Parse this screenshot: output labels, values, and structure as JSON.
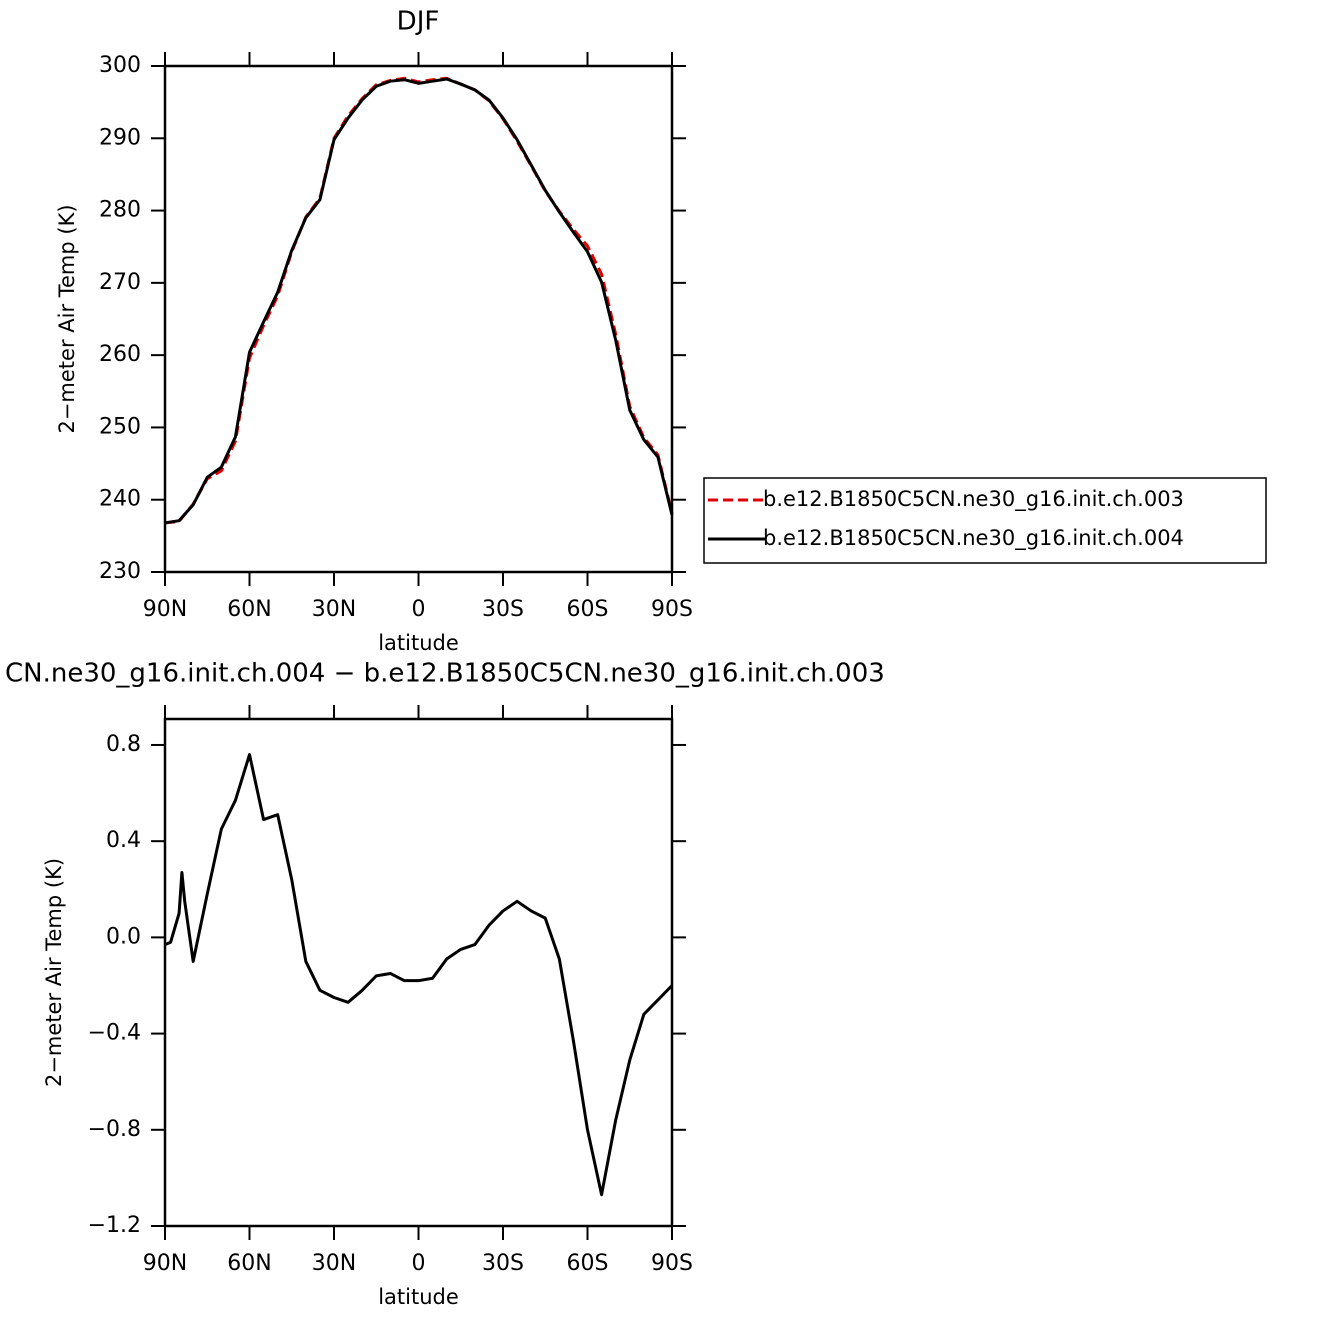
{
  "chart_data": [
    {
      "type": "line",
      "title": "DJF",
      "xlabel": "latitude",
      "ylabel": "2−meter Air Temp (K)",
      "x": [
        90,
        85,
        80,
        75,
        70,
        65,
        60,
        55,
        50,
        45,
        40,
        35,
        30,
        25,
        20,
        15,
        10,
        5,
        0,
        -5,
        -10,
        -15,
        -20,
        -25,
        -30,
        -35,
        -40,
        -45,
        -50,
        -55,
        -60,
        -65,
        -70,
        -75,
        -80,
        -85,
        -90
      ],
      "xlim": [
        90,
        -90
      ],
      "xticks": [
        {
          "value": 90,
          "label": "90N"
        },
        {
          "value": 60,
          "label": "60N"
        },
        {
          "value": 30,
          "label": "30N"
        },
        0,
        {
          "value": -30,
          "label": "30S"
        },
        {
          "value": -60,
          "label": "60S"
        },
        {
          "value": -90,
          "label": "90S"
        }
      ],
      "ylim": [
        230,
        300
      ],
      "yticks": [
        230,
        240,
        250,
        260,
        270,
        280,
        290,
        300
      ],
      "legend": "outside right",
      "series": [
        {
          "name": "b.e12.B1850C5CN.ne30_g16.init.ch.003",
          "color": "#e00000",
          "linestyle": "dashed",
          "values": [
            236.8,
            237.0,
            239.4,
            242.9,
            244.0,
            248.1,
            259.6,
            264.1,
            268.2,
            274.3,
            279.1,
            281.7,
            290.0,
            293.1,
            295.5,
            297.4,
            298.0,
            298.3,
            297.8,
            298.1,
            298.3,
            297.5,
            296.7,
            295.2,
            292.7,
            289.6,
            286.2,
            282.7,
            279.9,
            277.4,
            275.1,
            271.2,
            262.9,
            252.9,
            248.6,
            246.2,
            238.1
          ]
        },
        {
          "name": "b.e12.B1850C5CN.ne30_g16.init.ch.004",
          "color": "#000000",
          "linestyle": "solid",
          "values": [
            236.8,
            237.1,
            239.3,
            243.1,
            244.5,
            248.7,
            260.4,
            264.6,
            268.7,
            274.5,
            279.0,
            281.5,
            289.8,
            292.8,
            295.3,
            297.2,
            297.9,
            298.1,
            297.6,
            297.9,
            298.2,
            297.5,
            296.7,
            295.3,
            292.8,
            289.8,
            286.3,
            282.8,
            279.8,
            277.0,
            274.3,
            270.1,
            262.1,
            252.4,
            248.3,
            245.9,
            237.9
          ]
        }
      ]
    },
    {
      "type": "line",
      "title": "CN.ne30_g16.init.ch.004 − b.e12.B1850C5CN.ne30_g16.init.ch.003",
      "xlabel": "latitude",
      "ylabel": "2−meter Air Temp (K)",
      "x": [
        90,
        88,
        85,
        84,
        83,
        80,
        75,
        70,
        65,
        60,
        55,
        50,
        45,
        40,
        35,
        30,
        25,
        20,
        15,
        10,
        5,
        0,
        -5,
        -10,
        -15,
        -20,
        -25,
        -30,
        -35,
        -40,
        -45,
        -50,
        -55,
        -60,
        -65,
        -70,
        -75,
        -80,
        -85,
        -90
      ],
      "xlim": [
        90,
        -90
      ],
      "xticks": [
        {
          "value": 90,
          "label": "90N"
        },
        {
          "value": 60,
          "label": "60N"
        },
        {
          "value": 30,
          "label": "30N"
        },
        0,
        {
          "value": -30,
          "label": "30S"
        },
        {
          "value": -60,
          "label": "60S"
        },
        {
          "value": -90,
          "label": "90S"
        }
      ],
      "ylim": [
        -1.2,
        0.908
      ],
      "yticks": [
        {
          "value": -1.2,
          "label": "−1.2"
        },
        {
          "value": -0.8,
          "label": "−0.8"
        },
        {
          "value": -0.4,
          "label": "−0.4"
        },
        {
          "value": 0,
          "label": "0.0"
        },
        0.4,
        0.8
      ],
      "series": [
        {
          "color": "#000000",
          "linestyle": "solid",
          "values": [
            -0.03,
            -0.02,
            0.1,
            0.27,
            0.15,
            -0.1,
            0.18,
            0.45,
            0.57,
            0.76,
            0.49,
            0.51,
            0.24,
            -0.1,
            -0.22,
            -0.25,
            -0.27,
            -0.22,
            -0.16,
            -0.15,
            -0.18,
            -0.18,
            -0.17,
            -0.09,
            -0.05,
            -0.03,
            0.05,
            0.11,
            0.15,
            0.11,
            0.08,
            -0.09,
            -0.43,
            -0.8,
            -1.07,
            -0.76,
            -0.51,
            -0.32,
            -0.26,
            -0.2
          ]
        }
      ]
    }
  ]
}
